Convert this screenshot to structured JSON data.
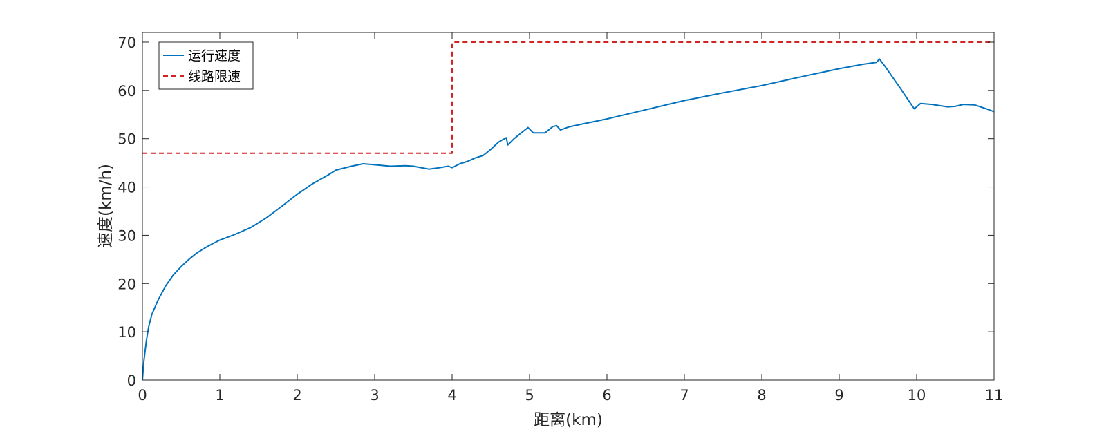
{
  "chart_data": {
    "type": "line",
    "title": "",
    "xlabel": "距离(km)",
    "ylabel": "速度(km/h)",
    "xlim": [
      0,
      11
    ],
    "ylim": [
      0,
      72
    ],
    "xticks": [
      0,
      1,
      2,
      3,
      4,
      5,
      6,
      7,
      8,
      9,
      10,
      11
    ],
    "yticks": [
      0,
      10,
      20,
      30,
      40,
      50,
      60,
      70
    ],
    "grid": false,
    "legend_position": "top-left",
    "series": [
      {
        "name": "运行速度",
        "color": "#0072BD",
        "line_style": "solid",
        "points": [
          [
            0,
            0
          ],
          [
            0.02,
            4
          ],
          [
            0.05,
            8
          ],
          [
            0.08,
            11
          ],
          [
            0.12,
            13.5
          ],
          [
            0.2,
            16.5
          ],
          [
            0.3,
            19.5
          ],
          [
            0.4,
            21.8
          ],
          [
            0.5,
            23.5
          ],
          [
            0.6,
            25
          ],
          [
            0.7,
            26.3
          ],
          [
            0.8,
            27.3
          ],
          [
            0.9,
            28.2
          ],
          [
            1.0,
            29
          ],
          [
            1.2,
            30.2
          ],
          [
            1.4,
            31.6
          ],
          [
            1.6,
            33.6
          ],
          [
            1.8,
            36
          ],
          [
            2.0,
            38.5
          ],
          [
            2.2,
            40.7
          ],
          [
            2.4,
            42.5
          ],
          [
            2.5,
            43.5
          ],
          [
            2.7,
            44.3
          ],
          [
            2.85,
            44.8
          ],
          [
            3.0,
            44.6
          ],
          [
            3.2,
            44.3
          ],
          [
            3.4,
            44.4
          ],
          [
            3.5,
            44.3
          ],
          [
            3.6,
            44.0
          ],
          [
            3.7,
            43.7
          ],
          [
            3.8,
            43.9
          ],
          [
            3.95,
            44.3
          ],
          [
            4.0,
            44.0
          ],
          [
            4.1,
            44.8
          ],
          [
            4.2,
            45.3
          ],
          [
            4.3,
            46.0
          ],
          [
            4.4,
            46.5
          ],
          [
            4.5,
            47.8
          ],
          [
            4.6,
            49.3
          ],
          [
            4.7,
            50.2
          ],
          [
            4.72,
            48.7
          ],
          [
            4.8,
            50.0
          ],
          [
            4.9,
            51.3
          ],
          [
            4.98,
            52.3
          ],
          [
            5.05,
            51.2
          ],
          [
            5.2,
            51.2
          ],
          [
            5.3,
            52.5
          ],
          [
            5.35,
            52.7
          ],
          [
            5.4,
            51.8
          ],
          [
            5.5,
            52.4
          ],
          [
            5.7,
            53.1
          ],
          [
            6.0,
            54.1
          ],
          [
            6.5,
            56.0
          ],
          [
            7.0,
            57.9
          ],
          [
            7.5,
            59.5
          ],
          [
            8.0,
            61.0
          ],
          [
            8.5,
            62.8
          ],
          [
            9.0,
            64.5
          ],
          [
            9.3,
            65.4
          ],
          [
            9.48,
            65.8
          ],
          [
            9.52,
            66.5
          ],
          [
            9.6,
            64.8
          ],
          [
            9.7,
            62.5
          ],
          [
            9.8,
            60.2
          ],
          [
            9.9,
            57.8
          ],
          [
            9.97,
            56.2
          ],
          [
            10.05,
            57.3
          ],
          [
            10.2,
            57.1
          ],
          [
            10.4,
            56.6
          ],
          [
            10.5,
            56.7
          ],
          [
            10.6,
            57.1
          ],
          [
            10.75,
            57.0
          ],
          [
            10.9,
            56.2
          ],
          [
            11.0,
            55.6
          ]
        ]
      },
      {
        "name": "线路限速",
        "color": "#D22424",
        "line_style": "dashed",
        "points": [
          [
            0,
            47
          ],
          [
            4.0,
            47
          ],
          [
            4.0,
            70
          ],
          [
            11,
            70
          ]
        ]
      }
    ]
  }
}
